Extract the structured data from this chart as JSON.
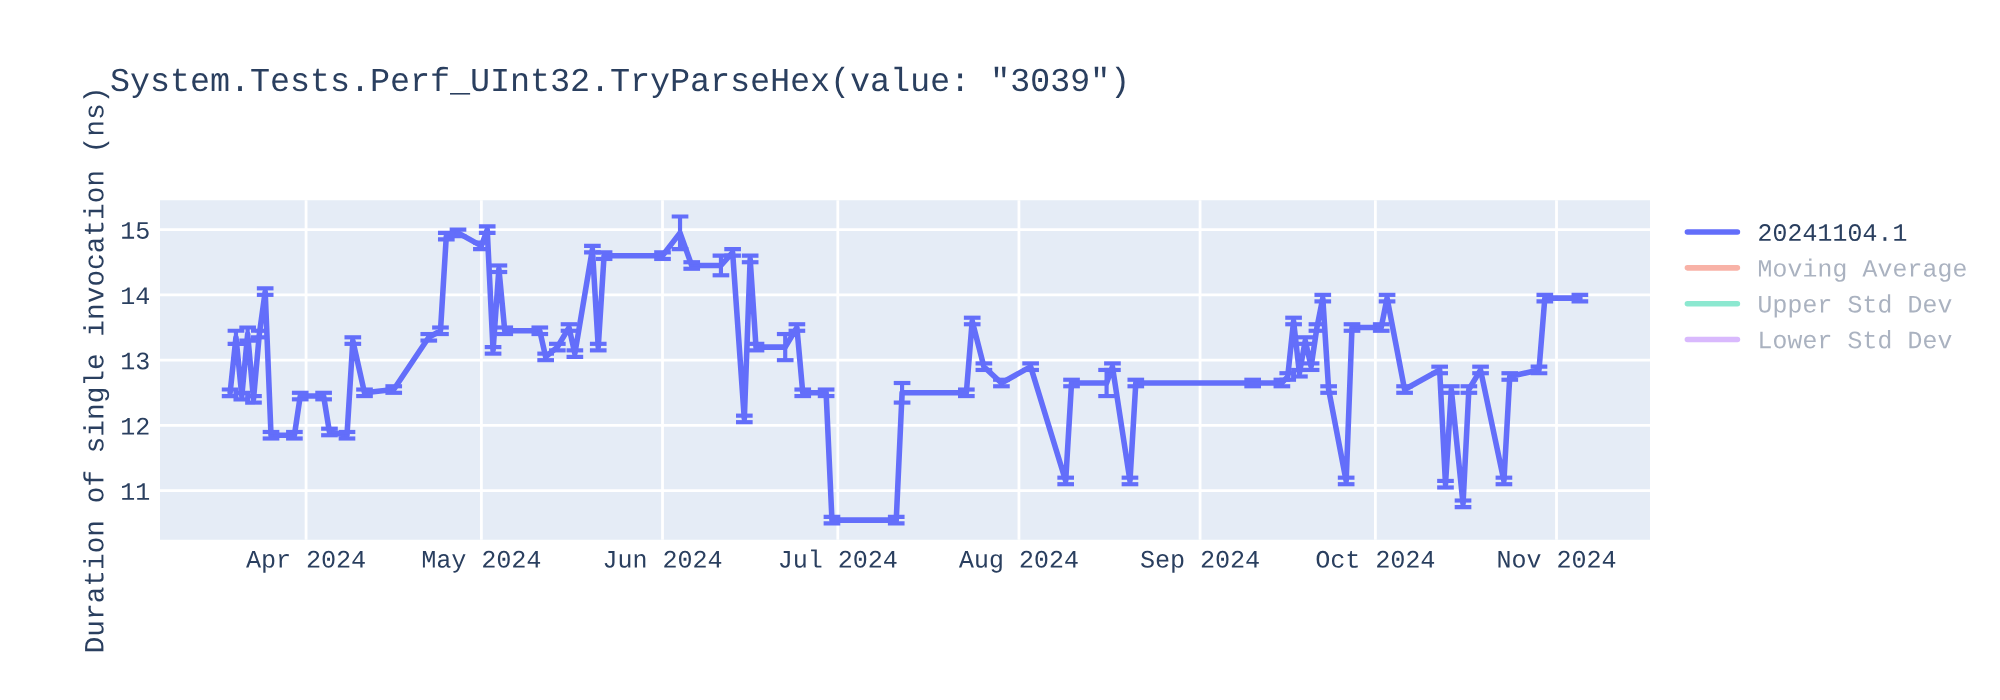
{
  "chart_data": {
    "type": "line",
    "title": "System.Tests.Perf_UInt32.TryParseHex(value: \"3039\")",
    "ylabel": "Duration of single invocation (ns)",
    "x": [
      "2024-03-19",
      "2024-03-20",
      "2024-03-21",
      "2024-03-22",
      "2024-03-23",
      "2024-03-24",
      "2024-03-25",
      "2024-03-26",
      "2024-03-30",
      "2024-03-31",
      "2024-04-04",
      "2024-04-05",
      "2024-04-08",
      "2024-04-09",
      "2024-04-11",
      "2024-04-16",
      "2024-04-22",
      "2024-04-24",
      "2024-04-25",
      "2024-04-27",
      "2024-05-01",
      "2024-05-02",
      "2024-05-03",
      "2024-05-04",
      "2024-05-05",
      "2024-05-11",
      "2024-05-12",
      "2024-05-14",
      "2024-05-16",
      "2024-05-17",
      "2024-05-20",
      "2024-05-21",
      "2024-05-22",
      "2024-06-01",
      "2024-06-04",
      "2024-06-06",
      "2024-06-11",
      "2024-06-13",
      "2024-06-15",
      "2024-06-16",
      "2024-06-17",
      "2024-06-22",
      "2024-06-24",
      "2024-06-25",
      "2024-06-29",
      "2024-06-30",
      "2024-07-11",
      "2024-07-12",
      "2024-07-23",
      "2024-07-24",
      "2024-07-26",
      "2024-07-29",
      "2024-08-03",
      "2024-08-09",
      "2024-08-10",
      "2024-08-16",
      "2024-08-17",
      "2024-08-20",
      "2024-08-21",
      "2024-09-10",
      "2024-09-15",
      "2024-09-16",
      "2024-09-17",
      "2024-09-18",
      "2024-09-19",
      "2024-09-20",
      "2024-09-21",
      "2024-09-22",
      "2024-09-23",
      "2024-09-26",
      "2024-09-27",
      "2024-10-02",
      "2024-10-03",
      "2024-10-06",
      "2024-10-12",
      "2024-10-13",
      "2024-10-14",
      "2024-10-16",
      "2024-10-17",
      "2024-10-19",
      "2024-10-23",
      "2024-10-24",
      "2024-10-29",
      "2024-10-30",
      "2024-11-05"
    ],
    "series": [
      {
        "name": "20241104.1",
        "color": "#636efa",
        "values": [
          12.5,
          13.35,
          12.45,
          13.4,
          12.4,
          13.4,
          14.05,
          11.85,
          11.85,
          12.45,
          12.45,
          11.9,
          11.85,
          13.3,
          12.5,
          12.55,
          13.35,
          13.45,
          14.9,
          14.95,
          14.75,
          15.0,
          13.15,
          14.4,
          13.45,
          13.45,
          13.05,
          13.2,
          13.5,
          13.1,
          14.7,
          13.2,
          14.6,
          14.6,
          14.95,
          14.45,
          14.45,
          14.65,
          12.1,
          14.55,
          13.2,
          13.2,
          13.5,
          12.5,
          12.5,
          10.55,
          10.55,
          12.5,
          12.5,
          13.6,
          12.9,
          12.65,
          12.9,
          11.15,
          12.65,
          12.65,
          12.9,
          11.15,
          12.65,
          12.65,
          12.65,
          12.75,
          13.6,
          12.8,
          13.3,
          12.9,
          13.5,
          13.95,
          12.55,
          11.15,
          13.5,
          13.5,
          13.95,
          12.55,
          12.85,
          11.1,
          12.55,
          10.8,
          12.55,
          12.85,
          11.15,
          12.75,
          12.85,
          13.95,
          13.95
        ],
        "errors": [
          0.05,
          0.1,
          0.05,
          0.1,
          0.05,
          0.05,
          0.05,
          0.05,
          0.05,
          0.05,
          0.05,
          0.05,
          0.05,
          0.05,
          0.05,
          0.05,
          0.05,
          0.05,
          0.05,
          0.05,
          0.05,
          0.05,
          0.05,
          0.05,
          0.05,
          0.05,
          0.05,
          0.05,
          0.05,
          0.05,
          0.05,
          0.05,
          0.05,
          0.05,
          0.25,
          0.05,
          0.15,
          0.05,
          0.05,
          0.05,
          0.05,
          0.2,
          0.05,
          0.05,
          0.05,
          0.05,
          0.05,
          0.15,
          0.05,
          0.05,
          0.05,
          0.05,
          0.05,
          0.05,
          0.05,
          0.2,
          0.05,
          0.05,
          0.05,
          0.05,
          0.05,
          0.05,
          0.05,
          0.05,
          0.05,
          0.05,
          0.05,
          0.05,
          0.05,
          0.05,
          0.05,
          0.05,
          0.05,
          0.05,
          0.05,
          0.05,
          0.05,
          0.05,
          0.05,
          0.05,
          0.05,
          0.05,
          0.05,
          0.05,
          0.05
        ]
      },
      {
        "name": "Moving Average",
        "color": "#ef553b",
        "values": [
          null,
          null,
          null,
          null,
          null,
          null,
          null,
          null,
          null,
          null,
          null,
          null,
          null,
          null,
          null,
          null,
          null,
          null,
          null,
          null,
          null,
          null,
          null,
          null,
          null,
          null,
          null,
          null,
          null,
          null,
          null,
          null,
          null,
          null,
          null,
          null,
          null,
          null,
          null,
          null,
          null,
          null,
          null,
          null,
          null,
          null,
          null,
          null,
          null,
          null,
          null,
          null,
          null,
          null,
          null,
          null,
          null,
          null,
          null,
          null,
          null,
          null,
          null,
          null,
          null,
          null,
          null,
          null,
          null,
          null,
          null,
          null,
          null,
          null,
          null,
          null,
          null,
          null,
          null,
          null,
          null,
          null,
          null,
          null,
          null
        ]
      },
      {
        "name": "Upper Std Dev",
        "color": "#00cc96",
        "values": [
          null,
          null,
          null,
          null,
          null,
          null,
          null,
          null,
          null,
          null,
          null,
          null,
          null,
          null,
          null,
          null,
          null,
          null,
          null,
          null,
          null,
          null,
          null,
          null,
          null,
          null,
          null,
          null,
          null,
          null,
          null,
          null,
          null,
          null,
          null,
          null,
          null,
          null,
          null,
          null,
          null,
          null,
          null,
          null,
          null,
          null,
          null,
          null,
          null,
          null,
          null,
          null,
          null,
          null,
          null,
          null,
          null,
          null,
          null,
          null,
          null,
          null,
          null,
          null,
          null,
          null,
          null,
          null,
          null,
          null,
          null,
          null,
          null,
          null,
          null,
          null,
          null,
          null,
          null,
          null,
          null,
          null,
          null,
          null,
          null
        ]
      },
      {
        "name": "Lower Std Dev",
        "color": "#ab63fa",
        "values": [
          null,
          null,
          null,
          null,
          null,
          null,
          null,
          null,
          null,
          null,
          null,
          null,
          null,
          null,
          null,
          null,
          null,
          null,
          null,
          null,
          null,
          null,
          null,
          null,
          null,
          null,
          null,
          null,
          null,
          null,
          null,
          null,
          null,
          null,
          null,
          null,
          null,
          null,
          null,
          null,
          null,
          null,
          null,
          null,
          null,
          null,
          null,
          null,
          null,
          null,
          null,
          null,
          null,
          null,
          null,
          null,
          null,
          null,
          null,
          null,
          null,
          null,
          null,
          null,
          null,
          null,
          null,
          null,
          null,
          null,
          null,
          null,
          null,
          null,
          null,
          null,
          null,
          null,
          null,
          null,
          null,
          null,
          null,
          null,
          null
        ]
      }
    ],
    "xlim": [
      "2024-03-07",
      "2024-11-17"
    ],
    "xticks": [
      {
        "value": "2024-04-01",
        "label": "Apr 2024"
      },
      {
        "value": "2024-05-01",
        "label": "May 2024"
      },
      {
        "value": "2024-06-01",
        "label": "Jun 2024"
      },
      {
        "value": "2024-07-01",
        "label": "Jul 2024"
      },
      {
        "value": "2024-08-01",
        "label": "Aug 2024"
      },
      {
        "value": "2024-09-01",
        "label": "Sep 2024"
      },
      {
        "value": "2024-10-01",
        "label": "Oct 2024"
      },
      {
        "value": "2024-11-01",
        "label": "Nov 2024"
      }
    ],
    "ylim": [
      10.25,
      15.45
    ],
    "yticks": [
      11,
      12,
      13,
      14,
      15
    ],
    "grid": true,
    "legend": "top right",
    "marker": "none",
    "line_style": "solid"
  }
}
